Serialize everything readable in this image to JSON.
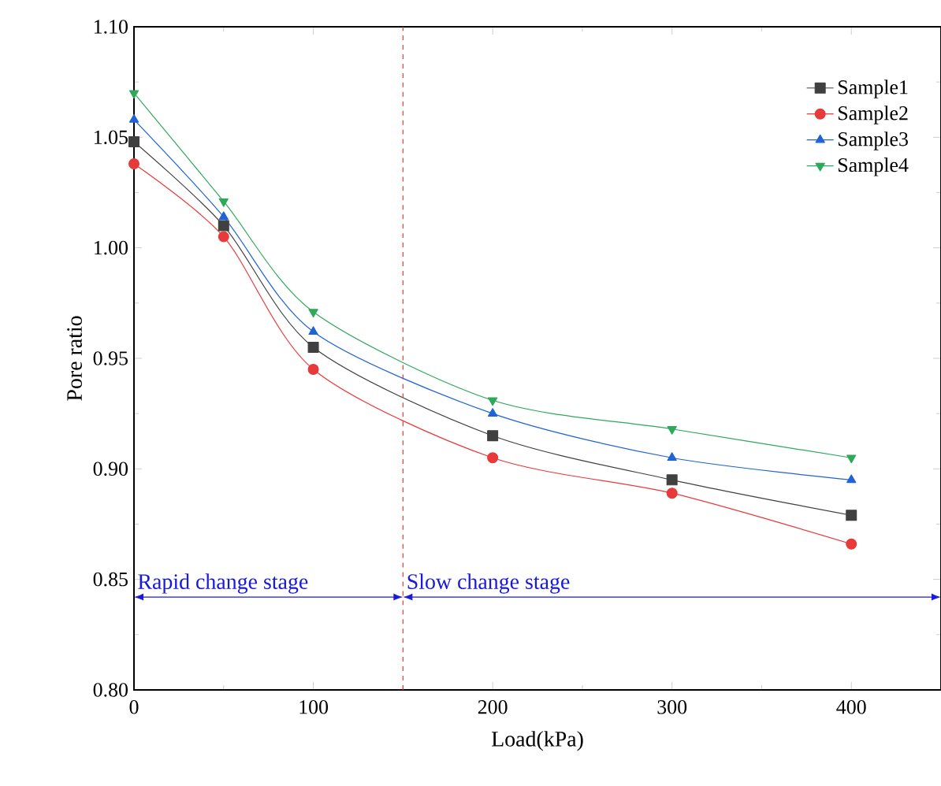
{
  "chart_data": {
    "type": "line",
    "xlabel": "Load(kPa)",
    "ylabel": "Pore ratio",
    "x": [
      0,
      50,
      100,
      200,
      300,
      400
    ],
    "series": [
      {
        "name": "Sample1",
        "color": "#404040",
        "marker": "square",
        "values": [
          1.048,
          1.01,
          0.955,
          0.915,
          0.895,
          0.879
        ]
      },
      {
        "name": "Sample2",
        "color": "#e83a3a",
        "marker": "circle",
        "values": [
          1.038,
          1.005,
          0.945,
          0.905,
          0.889,
          0.866
        ]
      },
      {
        "name": "Sample3",
        "color": "#1f63d6",
        "marker": "triangle",
        "values": [
          1.058,
          1.014,
          0.962,
          0.925,
          0.905,
          0.895
        ]
      },
      {
        "name": "Sample4",
        "color": "#2ea85a",
        "marker": "triangle-down",
        "values": [
          1.07,
          1.021,
          0.971,
          0.931,
          0.918,
          0.905
        ]
      }
    ],
    "xlim": [
      0,
      450
    ],
    "xticks": [
      0,
      100,
      200,
      300,
      400
    ],
    "ylim": [
      0.8,
      1.1
    ],
    "yticks": [
      {
        "value": 0.8,
        "label": "0.80"
      },
      {
        "value": 0.85,
        "label": "0.85"
      },
      {
        "value": 0.9,
        "label": "0.90"
      },
      {
        "value": 0.95,
        "label": "0.95"
      },
      {
        "value": 1.0,
        "label": "1.00"
      },
      {
        "value": 1.05,
        "label": "1.05"
      },
      {
        "value": 1.1,
        "label": "1.10"
      }
    ],
    "ref_lines": [
      {
        "axis": "x",
        "value": 150,
        "color": "#e83a3a",
        "line_style": "dashed"
      }
    ],
    "annotations": [
      "Rapid change stage",
      "Slow change stage"
    ],
    "legend": "top right",
    "line_style": "solid"
  }
}
